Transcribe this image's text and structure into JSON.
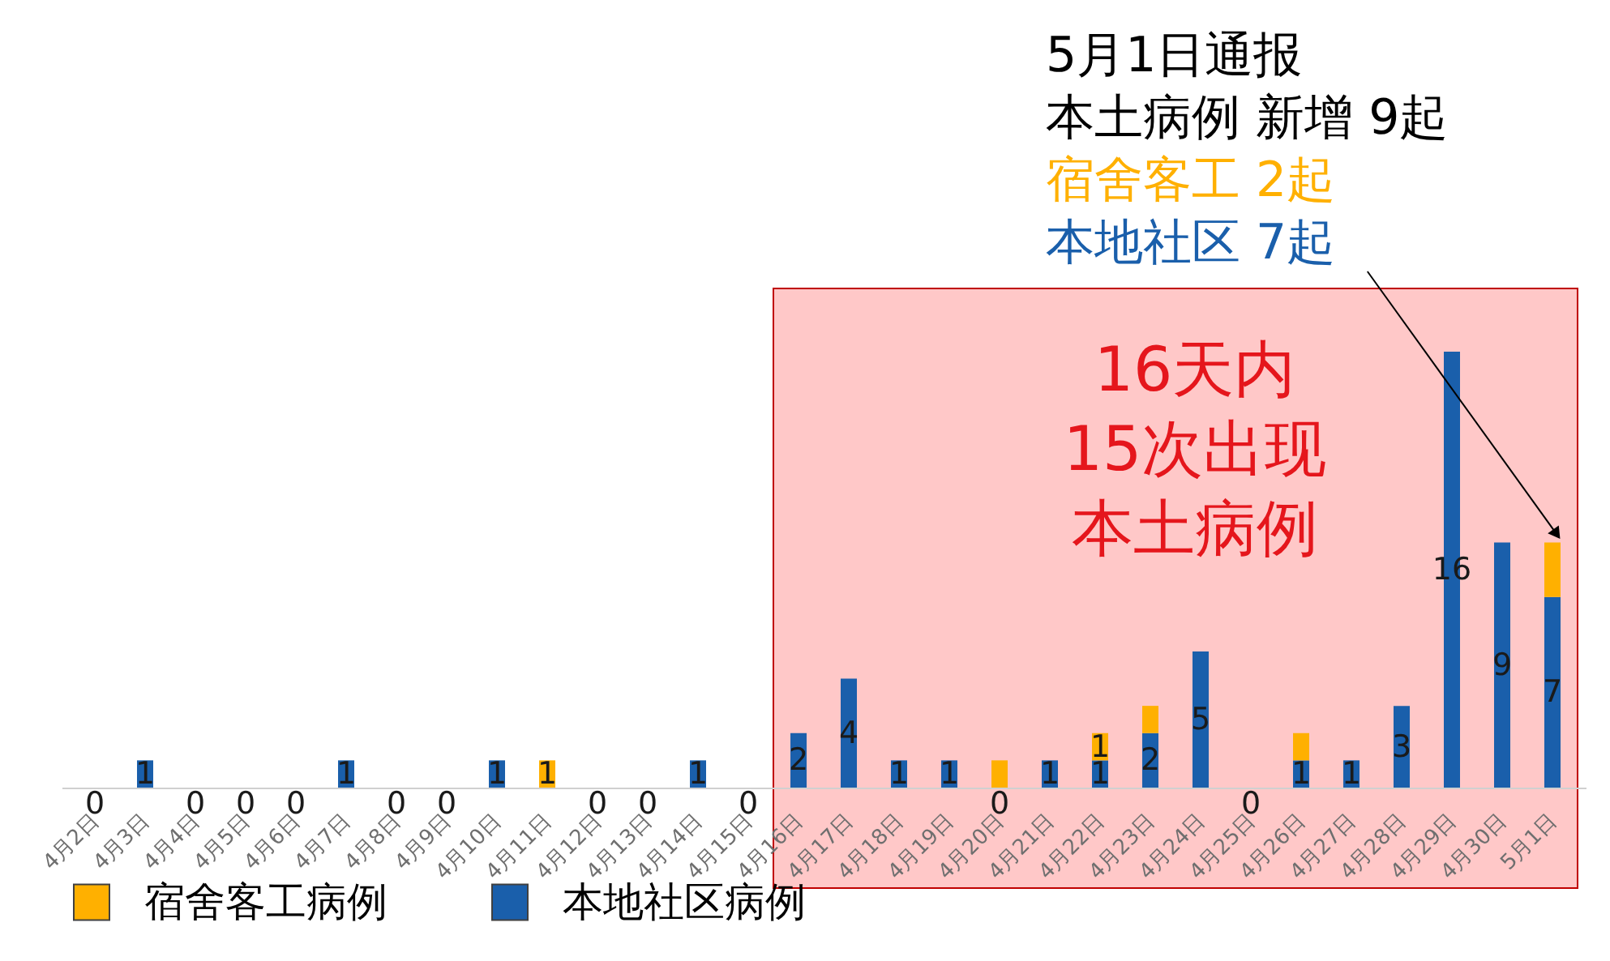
{
  "chart_data": {
    "type": "bar",
    "stacked": true,
    "categories": [
      "4月2日",
      "4月3日",
      "4月4日",
      "4月5日",
      "4月6日",
      "4月7日",
      "4月8日",
      "4月9日",
      "4月10日",
      "4月11日",
      "4月12日",
      "4月13日",
      "4月14日",
      "4月15日",
      "4月16日",
      "4月17日",
      "4月18日",
      "4月19日",
      "4月20日",
      "4月21日",
      "4月22日",
      "4月23日",
      "4月24日",
      "4月25日",
      "4月26日",
      "4月27日",
      "4月28日",
      "4月29日",
      "4月30日",
      "5月1日"
    ],
    "series": [
      {
        "name": "本地社区病例",
        "color": "#1a5fab",
        "values": [
          0,
          1,
          0,
          0,
          0,
          1,
          0,
          0,
          1,
          0,
          0,
          0,
          1,
          0,
          2,
          4,
          1,
          1,
          0,
          1,
          1,
          2,
          5,
          0,
          1,
          1,
          3,
          16,
          9,
          7
        ],
        "value_labels": [
          "0",
          "1",
          "0",
          "0",
          "0",
          "1",
          "0",
          "0",
          "1",
          null,
          "0",
          "0",
          "1",
          "0",
          "2",
          "4",
          "1",
          "1",
          "0",
          "1",
          "1",
          "2",
          "5",
          "0",
          "1",
          "1",
          "3",
          "16",
          "9",
          "7"
        ]
      },
      {
        "name": "宿舍客工病例",
        "color": "#ffb000",
        "values": [
          0,
          0,
          0,
          0,
          0,
          0,
          0,
          0,
          0,
          1,
          0,
          0,
          0,
          0,
          0,
          0,
          0,
          0,
          1,
          0,
          1,
          1,
          0,
          0,
          1,
          0,
          0,
          0,
          0,
          2
        ],
        "value_labels": [
          null,
          null,
          null,
          null,
          null,
          null,
          null,
          null,
          null,
          "1",
          null,
          null,
          null,
          null,
          null,
          null,
          null,
          null,
          null,
          null,
          "1",
          null,
          null,
          null,
          null,
          null,
          null,
          null,
          null,
          null
        ]
      }
    ],
    "tick_labels": "x",
    "legend": "bottom left",
    "bands": [
      {
        "axis": "x",
        "from": "4月16日",
        "to": "5月1日",
        "label": "16天内15次出现本土病例",
        "color": "#ffc8c8"
      }
    ],
    "annotations": [
      "5月1日通报",
      "本土病例 新增 9起",
      "宿舍客工 2起",
      {
        "text": "本地社区 7起",
        "x": "5月1日",
        "y": 9
      }
    ]
  }
}
